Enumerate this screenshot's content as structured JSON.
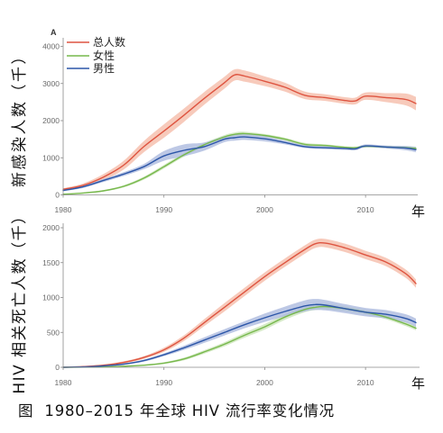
{
  "figure": {
    "caption": "图  1980–2015 年全球 HIV 流行率变化情况"
  },
  "chart_data": [
    {
      "type": "line",
      "panel_label": "A",
      "ylabel": "新感染人数（千）",
      "xlabel": "年",
      "xlim": [
        1980,
        2015
      ],
      "ylim": [
        0,
        4000
      ],
      "xticks": [
        1980,
        1990,
        2000,
        2010
      ],
      "yticks": [
        0,
        1000,
        2000,
        3000,
        4000
      ],
      "grid": false,
      "legend_position": "top-left",
      "x": [
        1980,
        1982,
        1984,
        1986,
        1988,
        1990,
        1992,
        1994,
        1996,
        1997,
        1998,
        2000,
        2002,
        2004,
        2006,
        2008,
        2009,
        2010,
        2012,
        2014,
        2015
      ],
      "series": [
        {
          "name": "总人数",
          "color": "#de5440",
          "band_color": "#f5bba8",
          "values": [
            150,
            260,
            480,
            800,
            1300,
            1720,
            2150,
            2600,
            3020,
            3230,
            3200,
            3060,
            2900,
            2680,
            2620,
            2540,
            2530,
            2660,
            2620,
            2570,
            2460
          ],
          "lower": [
            120,
            210,
            400,
            680,
            1150,
            1540,
            1970,
            2430,
            2860,
            3080,
            3050,
            2930,
            2780,
            2580,
            2530,
            2450,
            2440,
            2560,
            2500,
            2410,
            2280
          ],
          "upper": [
            180,
            310,
            560,
            920,
            1450,
            1900,
            2330,
            2770,
            3180,
            3380,
            3350,
            3190,
            3020,
            2780,
            2710,
            2630,
            2620,
            2760,
            2740,
            2730,
            2640
          ]
        },
        {
          "name": "女性",
          "color": "#77b84c",
          "band_color": "#c9e4b6",
          "values": [
            20,
            50,
            110,
            230,
            450,
            760,
            1080,
            1350,
            1560,
            1630,
            1650,
            1600,
            1500,
            1360,
            1330,
            1280,
            1270,
            1310,
            1290,
            1270,
            1250
          ],
          "lower": [
            10,
            35,
            90,
            200,
            410,
            710,
            1030,
            1300,
            1510,
            1580,
            1600,
            1560,
            1460,
            1320,
            1300,
            1250,
            1240,
            1280,
            1260,
            1230,
            1200
          ],
          "upper": [
            30,
            65,
            130,
            260,
            490,
            810,
            1130,
            1400,
            1610,
            1680,
            1700,
            1640,
            1540,
            1400,
            1360,
            1310,
            1300,
            1340,
            1320,
            1310,
            1300
          ]
        },
        {
          "name": "男性",
          "color": "#2c56a8",
          "band_color": "#aab8de",
          "values": [
            120,
            220,
            390,
            560,
            760,
            1050,
            1200,
            1300,
            1500,
            1540,
            1560,
            1510,
            1410,
            1300,
            1270,
            1250,
            1240,
            1320,
            1290,
            1260,
            1220
          ],
          "lower": [
            100,
            190,
            350,
            510,
            690,
            920,
            1040,
            1190,
            1420,
            1460,
            1480,
            1440,
            1360,
            1260,
            1230,
            1210,
            1200,
            1280,
            1250,
            1200,
            1150
          ],
          "upper": [
            140,
            250,
            430,
            610,
            830,
            1180,
            1360,
            1410,
            1580,
            1620,
            1640,
            1580,
            1460,
            1340,
            1310,
            1290,
            1280,
            1360,
            1330,
            1320,
            1290
          ]
        }
      ]
    },
    {
      "type": "line",
      "ylabel": "HIV 相关死亡人数（千）",
      "xlabel": "年",
      "xlim": [
        1980,
        2015
      ],
      "ylim": [
        0,
        2000
      ],
      "xticks": [
        1980,
        1990,
        2000,
        2010
      ],
      "yticks": [
        0,
        500,
        1000,
        1500,
        2000
      ],
      "grid": false,
      "x": [
        1980,
        1982,
        1984,
        1986,
        1988,
        1990,
        1992,
        1994,
        1996,
        1998,
        2000,
        2002,
        2004,
        2005,
        2006,
        2008,
        2010,
        2012,
        2014,
        2015
      ],
      "series": [
        {
          "color": "#de5440",
          "band_color": "#f5bba8",
          "values": [
            0,
            10,
            30,
            70,
            140,
            250,
            420,
            640,
            860,
            1080,
            1300,
            1500,
            1690,
            1770,
            1780,
            1710,
            1610,
            1510,
            1340,
            1200
          ],
          "lower": [
            0,
            5,
            20,
            55,
            120,
            220,
            380,
            590,
            800,
            1020,
            1240,
            1440,
            1630,
            1710,
            1720,
            1650,
            1550,
            1450,
            1280,
            1140
          ],
          "upper": [
            0,
            15,
            40,
            85,
            160,
            280,
            460,
            690,
            920,
            1140,
            1360,
            1560,
            1750,
            1830,
            1840,
            1770,
            1670,
            1570,
            1400,
            1260
          ]
        },
        {
          "color": "#77b84c",
          "band_color": "#c9e4b6",
          "values": [
            0,
            2,
            6,
            15,
            30,
            60,
            120,
            220,
            330,
            460,
            580,
            720,
            830,
            860,
            870,
            840,
            790,
            720,
            620,
            560
          ],
          "lower": [
            0,
            1,
            4,
            10,
            22,
            48,
            100,
            195,
            300,
            425,
            540,
            680,
            790,
            820,
            830,
            805,
            755,
            690,
            590,
            530
          ],
          "upper": [
            0,
            3,
            8,
            20,
            38,
            72,
            140,
            245,
            360,
            495,
            620,
            760,
            870,
            900,
            910,
            875,
            825,
            750,
            650,
            590
          ]
        },
        {
          "color": "#2c56a8",
          "band_color": "#aab8de",
          "values": [
            0,
            5,
            20,
            45,
            95,
            180,
            280,
            390,
            500,
            610,
            710,
            800,
            880,
            900,
            890,
            840,
            790,
            760,
            700,
            640
          ],
          "lower": [
            0,
            2,
            12,
            35,
            80,
            160,
            250,
            350,
            455,
            560,
            650,
            730,
            800,
            820,
            815,
            775,
            730,
            700,
            640,
            580
          ],
          "upper": [
            0,
            8,
            28,
            55,
            110,
            200,
            310,
            430,
            545,
            660,
            770,
            870,
            960,
            980,
            965,
            905,
            850,
            820,
            760,
            700
          ]
        }
      ]
    }
  ]
}
